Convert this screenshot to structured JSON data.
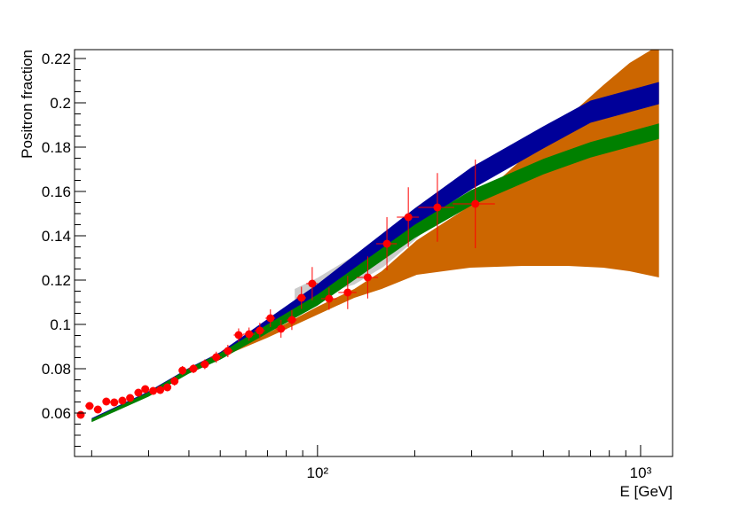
{
  "chart_data": {
    "type": "scatter",
    "xlabel": "E [GeV]",
    "ylabel": "Positron fraction",
    "xlog": true,
    "xlim": [
      17.7,
      1256
    ],
    "ylim": [
      0.0404,
      0.224
    ],
    "xticks": [
      {
        "value": 100,
        "label": "10²"
      },
      {
        "value": 1000,
        "label": "10³"
      }
    ],
    "xminorticks": [
      20,
      30,
      40,
      50,
      60,
      70,
      80,
      90,
      200,
      300,
      400,
      500,
      600,
      700,
      800,
      900
    ],
    "yticks": [
      0.06,
      0.08,
      0.1,
      0.12,
      0.14,
      0.16,
      0.18,
      0.2,
      0.22
    ],
    "yminorticks": [
      0.045,
      0.05,
      0.055,
      0.065,
      0.07,
      0.075,
      0.085,
      0.09,
      0.095,
      0.105,
      0.11,
      0.115,
      0.125,
      0.13,
      0.135,
      0.145,
      0.15,
      0.155,
      0.165,
      0.17,
      0.175,
      0.185,
      0.19,
      0.195,
      0.205,
      0.21,
      0.215
    ],
    "bands": [
      {
        "color": "#cc6600",
        "x": [
          50,
          70,
          100,
          130,
          158,
          203,
          297,
          433,
          595,
          767,
          925,
          1140
        ],
        "upper": [
          0.086,
          0.096,
          0.108,
          0.116,
          0.124,
          0.138,
          0.1536,
          0.175,
          0.1936,
          0.208,
          0.218,
          0.226
        ],
        "lower": [
          0.085,
          0.094,
          0.1044,
          0.112,
          0.116,
          0.1224,
          0.1256,
          0.1264,
          0.1264,
          0.1256,
          0.124,
          0.1212
        ]
      },
      {
        "color": "#cccccc",
        "x": [
          85,
          100,
          130,
          160,
          200,
          250,
          300
        ],
        "upper": [
          0.116,
          0.121,
          0.131,
          0.141,
          0.151,
          0.162,
          0.167
        ],
        "lower": [
          0.111,
          0.113,
          0.118,
          0.126,
          0.138,
          0.152,
          0.16
        ]
      },
      {
        "color": "#000099",
        "x": [
          20,
          30,
          40,
          50,
          70,
          100,
          200,
          300,
          500,
          700,
          1140
        ],
        "upper": [
          0.0577,
          0.0698,
          0.0804,
          0.0875,
          0.1024,
          0.1182,
          0.1524,
          0.171,
          0.1894,
          0.201,
          0.2094
        ],
        "lower": [
          0.0563,
          0.0678,
          0.078,
          0.0845,
          0.0984,
          0.1122,
          0.1444,
          0.161,
          0.1794,
          0.191,
          0.1994
        ]
      },
      {
        "color": "#008000",
        "x": [
          20,
          30,
          40,
          50,
          70,
          100,
          200,
          300,
          500,
          700,
          1140
        ],
        "upper": [
          0.0573,
          0.0694,
          0.0802,
          0.0871,
          0.1,
          0.1135,
          0.145,
          0.1607,
          0.1747,
          0.1823,
          0.1907
        ],
        "lower": [
          0.0559,
          0.0674,
          0.0778,
          0.0841,
          0.096,
          0.1085,
          0.139,
          0.1537,
          0.1677,
          0.1753,
          0.1837
        ]
      }
    ],
    "points": {
      "color": "#ff0000",
      "x": [
        18.5,
        19.7,
        20.9,
        22.2,
        23.5,
        24.9,
        26.3,
        27.9,
        29.3,
        31.0,
        32.6,
        34.3,
        36.1,
        38.2,
        41.3,
        44.8,
        48.6,
        52.8,
        57.0,
        61.4,
        66.3,
        71.5,
        77.1,
        83.3,
        89.2,
        96.3,
        108.6,
        124,
        143,
        164,
        191,
        235,
        308
      ],
      "values": [
        0.0592,
        0.0632,
        0.0616,
        0.0652,
        0.0648,
        0.0656,
        0.0668,
        0.0692,
        0.0708,
        0.07,
        0.0704,
        0.0716,
        0.0744,
        0.0792,
        0.08,
        0.082,
        0.0852,
        0.088,
        0.0952,
        0.0956,
        0.0972,
        0.1028,
        0.098,
        0.102,
        0.112,
        0.1184,
        0.1116,
        0.1144,
        0.1212,
        0.1364,
        0.1484,
        0.1528,
        0.1544
      ],
      "yerr": [
        0.0015,
        0.0015,
        0.0015,
        0.0015,
        0.0015,
        0.0015,
        0.0015,
        0.0015,
        0.0015,
        0.0015,
        0.0018,
        0.0018,
        0.002,
        0.002,
        0.002,
        0.0022,
        0.0025,
        0.0028,
        0.003,
        0.003,
        0.0035,
        0.004,
        0.004,
        0.0045,
        0.005,
        0.0075,
        0.005,
        0.0075,
        0.0095,
        0.012,
        0.0135,
        0.0155,
        0.02
      ],
      "xerr": [
        0.5,
        0.6,
        0.6,
        0.6,
        0.7,
        0.7,
        0.7,
        0.8,
        0.8,
        0.8,
        0.8,
        0.9,
        0.9,
        1,
        1.5,
        1.5,
        2,
        2,
        2,
        2.5,
        2.5,
        2.5,
        3,
        3,
        3,
        4,
        6,
        8,
        11,
        12,
        15,
        30,
        46
      ]
    }
  }
}
